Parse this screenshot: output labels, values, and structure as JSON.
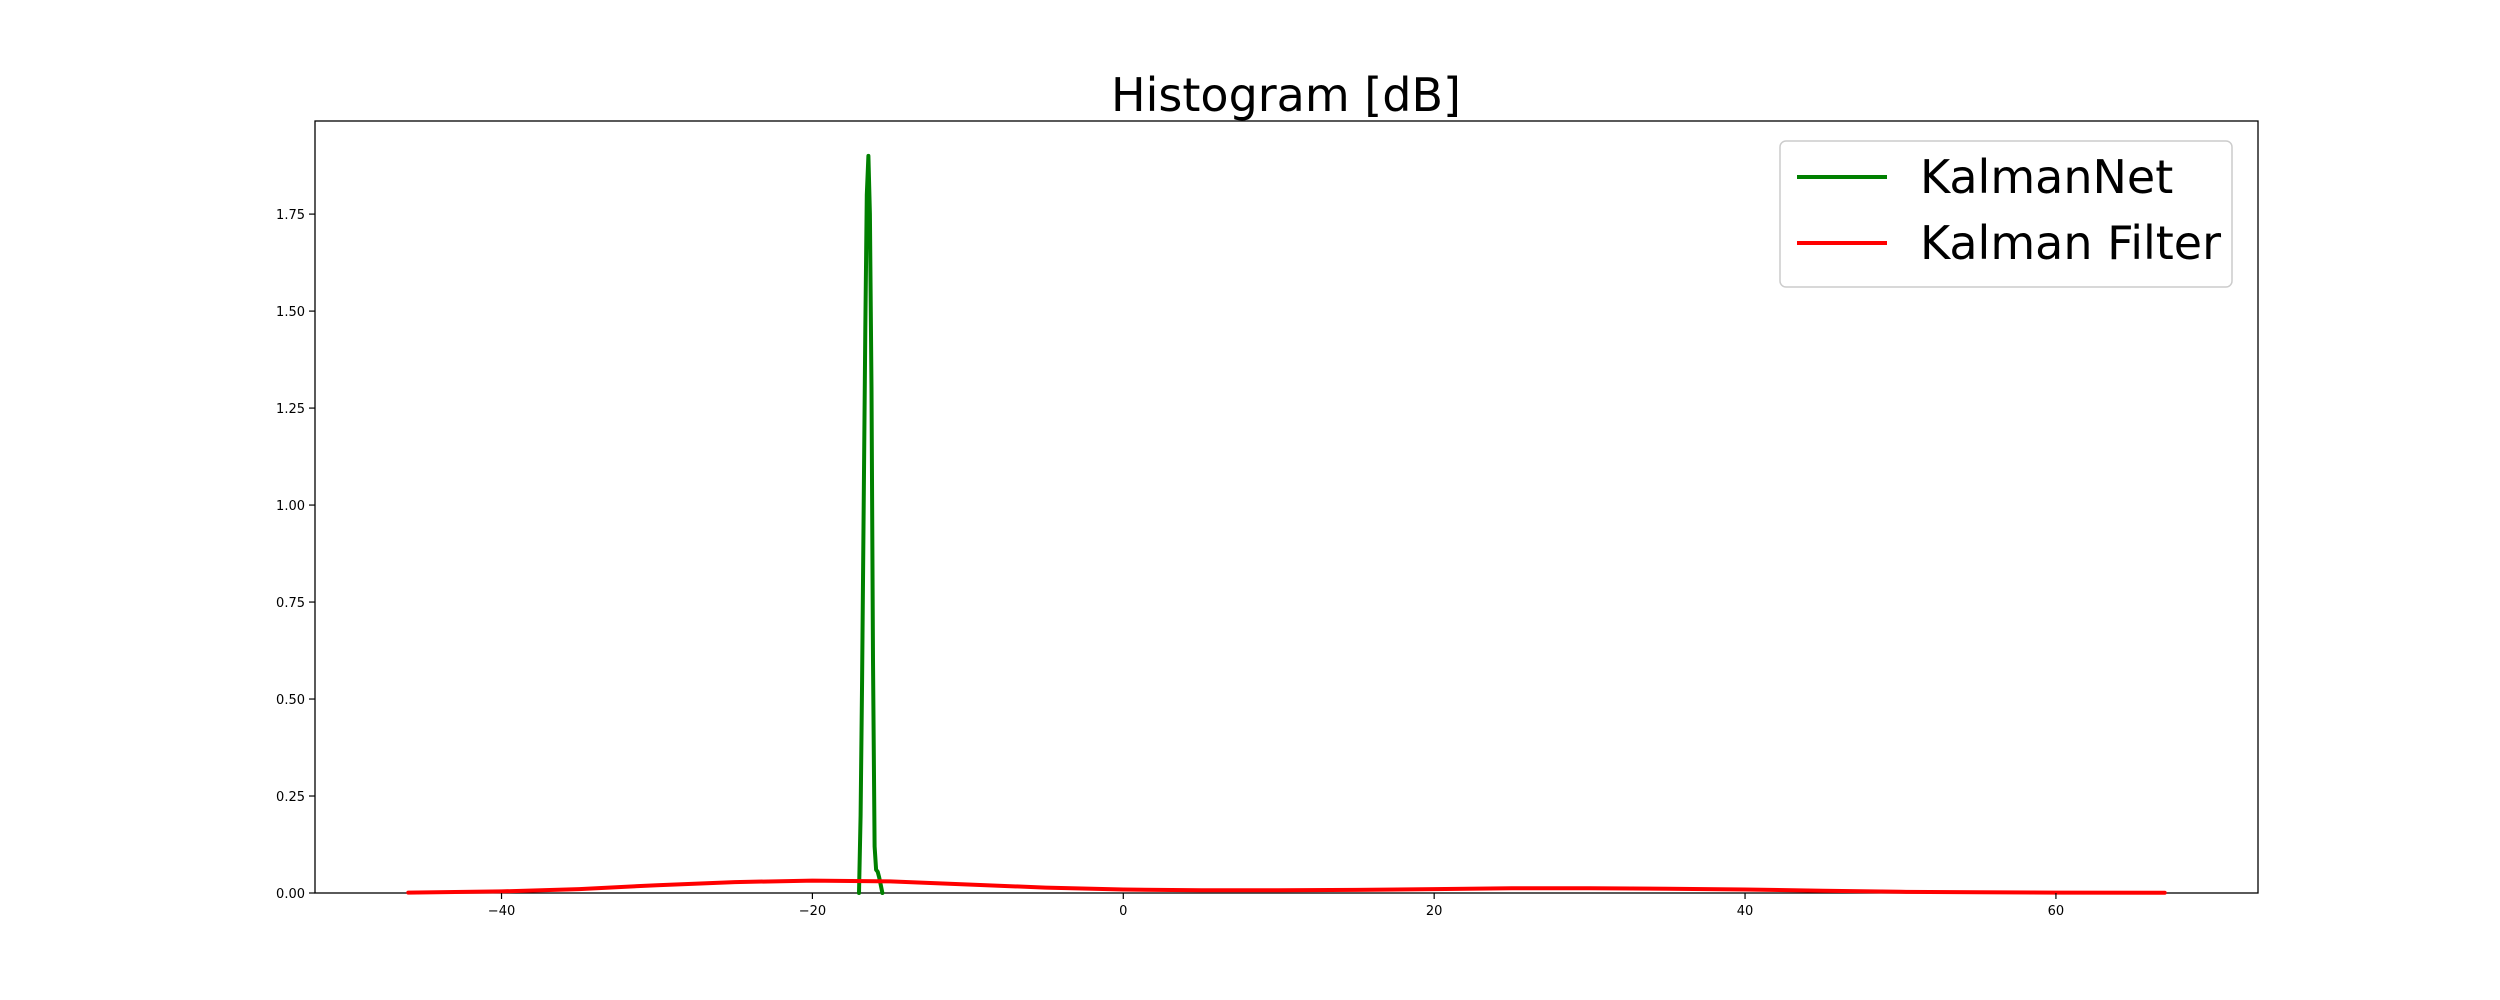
{
  "chart_data": {
    "type": "line",
    "title": "Histogram [dB]",
    "xlabel": "",
    "ylabel": "",
    "xlim": [
      -52,
      73
    ],
    "ylim": [
      0,
      1.99
    ],
    "x_ticks": [
      -40,
      -20,
      0,
      20,
      40,
      60
    ],
    "x_tick_labels": [
      "−40",
      "−20",
      "0",
      "20",
      "40",
      "60"
    ],
    "y_ticks": [
      0,
      0.25,
      0.5,
      0.75,
      1.0,
      1.25,
      1.5,
      1.75
    ],
    "y_tick_labels": [
      "0.00",
      "0.25",
      "0.50",
      "0.75",
      "1.00",
      "1.25",
      "1.50",
      "1.75"
    ],
    "grid": false,
    "legend_position": "top-right",
    "series": [
      {
        "name": "KalmanNet",
        "color": "#008000",
        "x": [
          -17.0,
          -16.9,
          -16.8,
          -16.7,
          -16.6,
          -16.5,
          -16.4,
          -16.3,
          -16.2,
          -16.1,
          -16.0,
          -15.9,
          -15.8,
          -15.7,
          -15.6,
          -15.5
        ],
        "y": [
          0.0,
          0.2,
          0.55,
          1.0,
          1.45,
          1.8,
          1.9,
          1.75,
          1.3,
          0.6,
          0.12,
          0.06,
          0.055,
          0.04,
          0.02,
          0.0
        ]
      },
      {
        "name": "Kalman Filter",
        "color": "#ff0000",
        "x": [
          -46,
          -40,
          -35,
          -30,
          -25,
          -20,
          -15,
          -10,
          -5,
          0,
          5,
          10,
          15,
          20,
          25,
          30,
          35,
          40,
          45,
          50,
          55,
          60,
          67
        ],
        "y": [
          0.001,
          0.004,
          0.01,
          0.02,
          0.028,
          0.032,
          0.03,
          0.022,
          0.014,
          0.009,
          0.007,
          0.007,
          0.008,
          0.01,
          0.012,
          0.012,
          0.011,
          0.009,
          0.006,
          0.003,
          0.002,
          0.001,
          0.0005
        ]
      }
    ]
  }
}
